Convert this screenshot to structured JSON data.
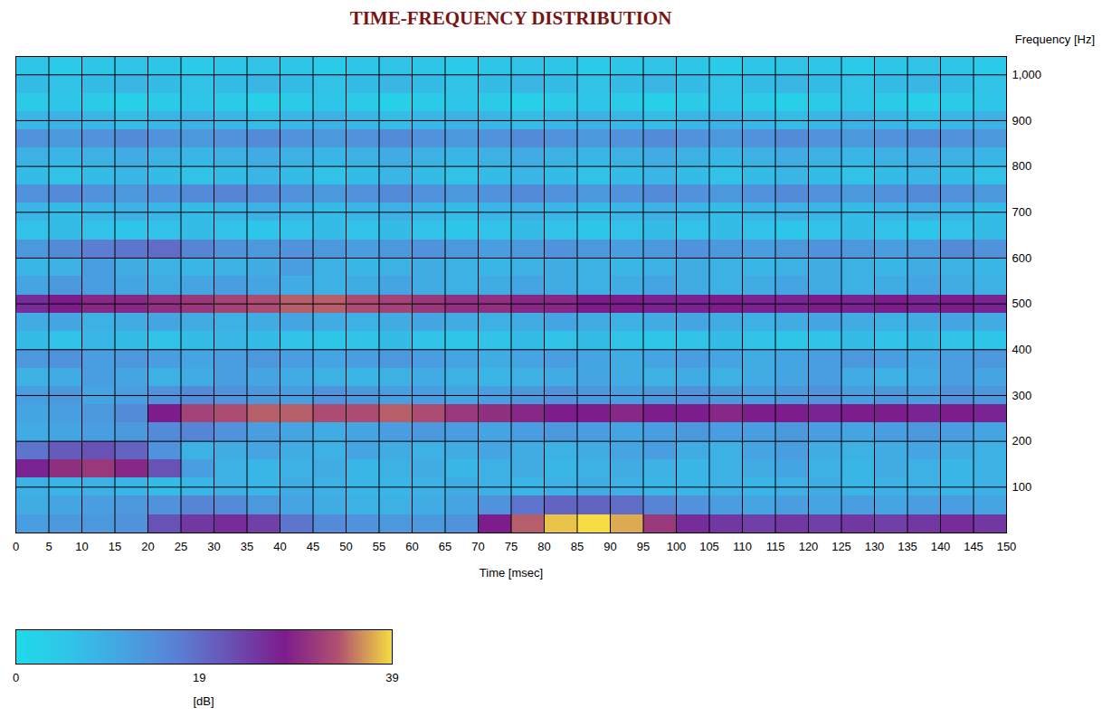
{
  "chart_data": {
    "type": "heatmap",
    "title": "TIME-FREQUENCY DISTRIBUTION",
    "x_label": "Time [msec]",
    "y_label": "Frequency [Hz]",
    "xlim": [
      0,
      150
    ],
    "xticks": [
      0,
      5,
      10,
      15,
      20,
      25,
      30,
      35,
      40,
      45,
      50,
      55,
      60,
      65,
      70,
      75,
      80,
      85,
      90,
      95,
      100,
      105,
      110,
      115,
      120,
      125,
      130,
      135,
      140,
      145,
      150
    ],
    "ylim": [
      0,
      1040
    ],
    "yticks": [
      100,
      200,
      300,
      400,
      500,
      600,
      700,
      800,
      900,
      1000
    ],
    "grid": true,
    "time_bins": [
      0,
      5,
      10,
      15,
      20,
      25,
      30,
      35,
      40,
      45,
      50,
      55,
      60,
      65,
      70,
      75,
      80,
      85,
      90,
      95,
      100,
      105,
      110,
      115,
      120,
      125,
      130,
      135,
      140,
      145,
      150
    ],
    "frequency_bins": [
      0,
      40,
      80,
      120,
      160,
      200,
      240,
      280,
      320,
      360,
      400,
      440,
      480,
      520,
      560,
      600,
      640,
      680,
      720,
      760,
      800,
      840,
      880,
      920,
      960,
      1000,
      1040
    ],
    "values": [
      [
        12,
        13,
        13,
        14,
        22,
        25,
        26,
        24,
        18,
        15,
        14,
        13,
        13,
        14,
        28,
        34,
        38,
        39,
        37,
        31,
        26,
        25,
        24,
        25,
        24,
        25,
        24,
        25,
        26,
        25
      ],
      [
        10,
        11,
        12,
        13,
        14,
        16,
        15,
        13,
        11,
        10,
        9,
        9,
        10,
        11,
        14,
        18,
        20,
        20,
        19,
        16,
        14,
        12,
        11,
        12,
        11,
        12,
        11,
        12,
        12,
        11
      ],
      [
        9,
        8,
        9,
        8,
        7,
        8,
        9,
        8,
        10,
        9,
        8,
        8,
        9,
        10,
        9,
        8,
        9,
        10,
        9,
        8,
        8,
        9,
        8,
        9,
        10,
        8,
        9,
        9,
        8,
        9
      ],
      [
        27,
        30,
        31,
        29,
        22,
        12,
        9,
        8,
        9,
        10,
        8,
        9,
        10,
        8,
        9,
        10,
        8,
        9,
        10,
        9,
        8,
        9,
        10,
        11,
        9,
        8,
        10,
        9,
        8,
        9
      ],
      [
        18,
        21,
        22,
        20,
        14,
        9,
        10,
        11,
        10,
        9,
        11,
        10,
        9,
        10,
        11,
        10,
        9,
        10,
        11,
        12,
        10,
        9,
        11,
        12,
        10,
        9,
        10,
        11,
        10,
        9
      ],
      [
        10,
        11,
        12,
        13,
        15,
        16,
        14,
        12,
        11,
        10,
        11,
        12,
        13,
        12,
        11,
        12,
        13,
        12,
        11,
        12,
        13,
        12,
        12,
        13,
        12,
        11,
        12,
        13,
        12,
        11
      ],
      [
        11,
        12,
        13,
        15,
        28,
        32,
        33,
        34,
        34,
        33,
        33,
        34,
        33,
        31,
        30,
        29,
        28,
        28,
        29,
        28,
        28,
        29,
        28,
        28,
        27,
        28,
        28,
        27,
        28,
        27
      ],
      [
        12,
        13,
        11,
        12,
        14,
        15,
        14,
        13,
        12,
        14,
        13,
        12,
        12,
        11,
        12,
        13,
        14,
        13,
        12,
        13,
        14,
        13,
        12,
        13,
        14,
        12,
        13,
        12,
        14,
        13
      ],
      [
        9,
        10,
        12,
        11,
        9,
        10,
        12,
        11,
        10,
        9,
        8,
        9,
        10,
        9,
        8,
        9,
        10,
        11,
        10,
        9,
        10,
        9,
        10,
        11,
        12,
        10,
        9,
        10,
        12,
        11
      ],
      [
        13,
        14,
        12,
        13,
        12,
        11,
        12,
        13,
        12,
        11,
        12,
        13,
        12,
        11,
        10,
        11,
        12,
        11,
        10,
        11,
        12,
        11,
        10,
        11,
        12,
        13,
        12,
        11,
        12,
        13
      ],
      [
        7,
        6,
        8,
        7,
        6,
        7,
        8,
        7,
        6,
        5,
        6,
        7,
        6,
        5,
        6,
        7,
        6,
        7,
        6,
        5,
        6,
        7,
        6,
        5,
        6,
        7,
        6,
        7,
        6,
        5
      ],
      [
        10,
        11,
        9,
        10,
        11,
        10,
        9,
        10,
        11,
        10,
        9,
        10,
        11,
        10,
        9,
        10,
        11,
        10,
        9,
        10,
        11,
        10,
        9,
        10,
        11,
        10,
        9,
        10,
        11,
        10
      ],
      [
        26,
        28,
        29,
        29,
        30,
        31,
        32,
        33,
        34,
        34,
        33,
        32,
        31,
        30,
        30,
        29,
        29,
        28,
        28,
        27,
        27,
        28,
        27,
        27,
        28,
        27,
        28,
        27,
        28,
        27
      ],
      [
        11,
        13,
        12,
        11,
        10,
        11,
        12,
        11,
        10,
        9,
        10,
        11,
        10,
        9,
        10,
        11,
        10,
        9,
        10,
        11,
        10,
        9,
        10,
        11,
        10,
        9,
        10,
        11,
        10,
        9
      ],
      [
        8,
        9,
        12,
        10,
        9,
        8,
        9,
        10,
        12,
        9,
        8,
        9,
        10,
        9,
        8,
        9,
        10,
        9,
        8,
        9,
        10,
        9,
        8,
        9,
        10,
        9,
        8,
        10,
        9,
        8
      ],
      [
        13,
        15,
        17,
        18,
        19,
        16,
        14,
        13,
        14,
        13,
        12,
        13,
        14,
        13,
        12,
        13,
        14,
        13,
        12,
        13,
        14,
        13,
        12,
        13,
        14,
        13,
        12,
        13,
        15,
        14
      ],
      [
        6,
        7,
        6,
        5,
        6,
        7,
        6,
        5,
        6,
        7,
        6,
        7,
        6,
        5,
        6,
        7,
        6,
        5,
        6,
        7,
        6,
        7,
        6,
        5,
        6,
        7,
        6,
        5,
        6,
        7
      ],
      [
        8,
        7,
        8,
        9,
        8,
        7,
        8,
        9,
        8,
        7,
        8,
        9,
        8,
        7,
        8,
        9,
        8,
        7,
        8,
        9,
        8,
        7,
        8,
        9,
        8,
        7,
        8,
        9,
        8,
        7
      ],
      [
        14,
        15,
        14,
        13,
        14,
        15,
        16,
        15,
        14,
        13,
        14,
        15,
        14,
        13,
        14,
        15,
        14,
        13,
        14,
        15,
        14,
        13,
        14,
        15,
        14,
        13,
        14,
        15,
        14,
        13
      ],
      [
        7,
        6,
        7,
        8,
        7,
        6,
        7,
        8,
        7,
        6,
        7,
        8,
        7,
        6,
        7,
        8,
        7,
        6,
        7,
        8,
        7,
        6,
        7,
        8,
        7,
        6,
        7,
        8,
        7,
        6
      ],
      [
        9,
        8,
        9,
        10,
        9,
        8,
        9,
        10,
        9,
        8,
        9,
        10,
        9,
        8,
        9,
        10,
        9,
        8,
        9,
        10,
        9,
        8,
        9,
        10,
        9,
        8,
        9,
        10,
        9,
        8
      ],
      [
        14,
        13,
        14,
        15,
        14,
        13,
        14,
        15,
        14,
        13,
        14,
        15,
        14,
        13,
        14,
        15,
        14,
        13,
        14,
        15,
        14,
        13,
        14,
        15,
        14,
        13,
        14,
        15,
        14,
        13
      ],
      [
        8,
        9,
        8,
        7,
        8,
        9,
        8,
        7,
        8,
        9,
        8,
        7,
        8,
        9,
        8,
        7,
        8,
        9,
        8,
        7,
        8,
        9,
        8,
        7,
        8,
        9,
        8,
        7,
        8,
        9
      ],
      [
        4,
        5,
        4,
        3,
        4,
        5,
        4,
        3,
        4,
        5,
        4,
        3,
        4,
        5,
        4,
        3,
        4,
        5,
        4,
        3,
        4,
        5,
        4,
        3,
        4,
        5,
        4,
        3,
        4,
        5
      ],
      [
        7,
        6,
        7,
        8,
        7,
        6,
        7,
        8,
        7,
        6,
        7,
        8,
        7,
        6,
        7,
        8,
        7,
        6,
        7,
        8,
        7,
        6,
        7,
        8,
        7,
        6,
        7,
        8,
        7,
        6
      ],
      [
        5,
        4,
        5,
        6,
        5,
        4,
        5,
        6,
        5,
        4,
        5,
        6,
        5,
        4,
        5,
        6,
        5,
        4,
        5,
        6,
        5,
        4,
        5,
        6,
        5,
        4,
        5,
        6,
        5,
        4
      ]
    ],
    "colorbar": {
      "label": "[dB]",
      "range": [
        0,
        39
      ],
      "ticks": [
        0,
        19,
        39
      ],
      "colors": [
        "#1edbe9",
        "#30c4e8",
        "#45a4e2",
        "#5a80d4",
        "#6a50b4",
        "#7c1c8c",
        "#b05070",
        "#f5dc40"
      ]
    }
  }
}
